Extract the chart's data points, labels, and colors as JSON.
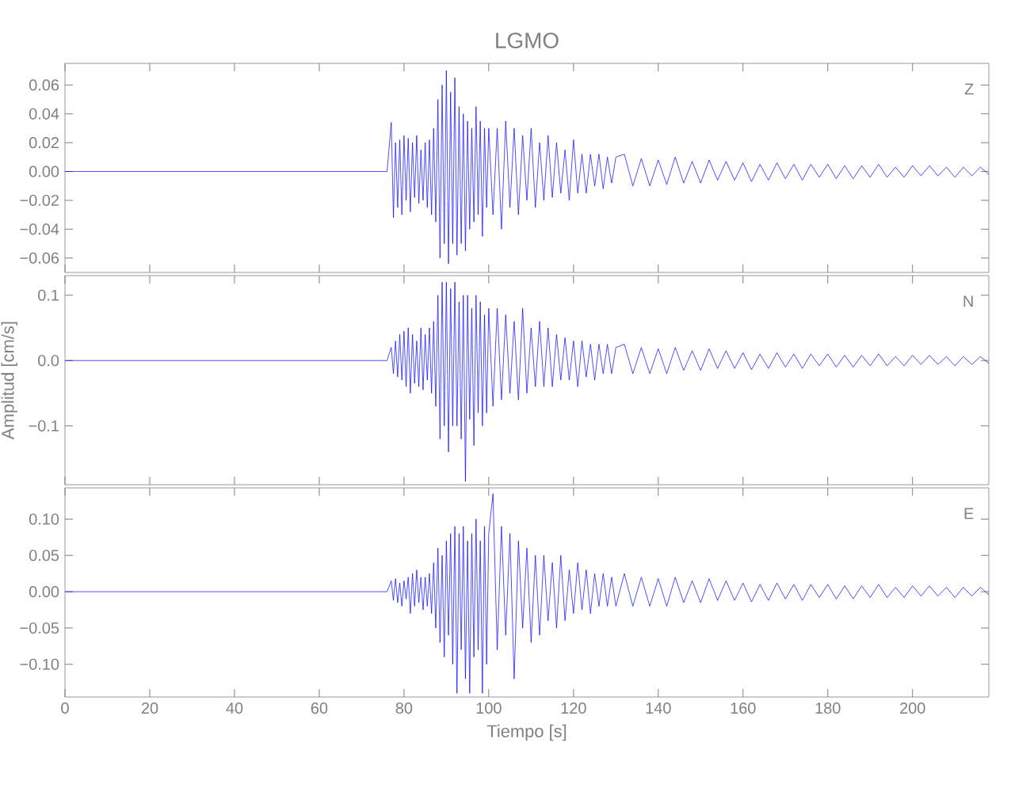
{
  "chart_data": [
    {
      "type": "line",
      "title": "LGMO",
      "annotations": [
        "Z"
      ],
      "tick_labels": "y",
      "color": "#0000ff",
      "xlim": [
        0,
        218
      ],
      "xticks": [
        0,
        20,
        40,
        60,
        80,
        100,
        120,
        140,
        160,
        180,
        200
      ],
      "ylim": [
        -0.07,
        0.075
      ],
      "yticks": [
        {
          "value": -0.06,
          "label": "−0.06"
        },
        {
          "value": -0.04,
          "label": "−0.04"
        },
        {
          "value": -0.02,
          "label": "−0.02"
        },
        {
          "value": 0,
          "label": "0.00"
        },
        {
          "value": 0.02,
          "label": "0.02"
        },
        {
          "value": 0.04,
          "label": "0.04"
        },
        {
          "value": 0.06,
          "label": "0.06"
        }
      ],
      "x": [
        0,
        20,
        40,
        60,
        76,
        77,
        77.5,
        78,
        78.5,
        79,
        79.5,
        80,
        80.5,
        81,
        81.5,
        82,
        82.5,
        83,
        83.5,
        84,
        84.5,
        85,
        85.5,
        86,
        86.5,
        87,
        87.5,
        88,
        88.5,
        89,
        89.5,
        90,
        90.5,
        91,
        91.5,
        92,
        92.5,
        93,
        93.5,
        94,
        94.5,
        95,
        95.5,
        96,
        96.5,
        97,
        97.5,
        98,
        98.5,
        99,
        99.5,
        100,
        101,
        102,
        103,
        104,
        105,
        106,
        107,
        108,
        109,
        110,
        111,
        112,
        113,
        114,
        115,
        116,
        117,
        118,
        119,
        120,
        121,
        122,
        123,
        124,
        125,
        126,
        127,
        128,
        129,
        130,
        132,
        134,
        136,
        138,
        140,
        142,
        144,
        146,
        148,
        150,
        152,
        154,
        156,
        158,
        160,
        162,
        164,
        166,
        168,
        170,
        172,
        174,
        176,
        178,
        180,
        182,
        184,
        186,
        188,
        190,
        192,
        194,
        196,
        198,
        200,
        202,
        204,
        206,
        208,
        210,
        212,
        214,
        216,
        218
      ],
      "values": [
        0,
        0,
        0,
        0,
        0,
        0.034,
        -0.032,
        0.02,
        -0.025,
        0.022,
        -0.03,
        0.025,
        -0.02,
        0.023,
        -0.028,
        0.02,
        -0.018,
        0.025,
        -0.022,
        0.015,
        -0.02,
        0.02,
        -0.025,
        0.022,
        -0.03,
        0.03,
        -0.035,
        0.05,
        -0.06,
        0.06,
        -0.05,
        0.07,
        -0.064,
        0.055,
        -0.05,
        0.065,
        -0.058,
        0.045,
        -0.05,
        0.04,
        -0.055,
        0.035,
        -0.04,
        0.03,
        -0.035,
        0.045,
        -0.03,
        0.035,
        -0.045,
        0.03,
        -0.025,
        0.03,
        -0.03,
        0.03,
        -0.04,
        0.035,
        -0.025,
        0.03,
        -0.03,
        0.025,
        -0.02,
        0.03,
        -0.025,
        0.02,
        -0.02,
        0.025,
        -0.018,
        0.02,
        -0.015,
        0.015,
        -0.02,
        0.022,
        -0.015,
        0.012,
        -0.015,
        0.012,
        -0.01,
        0.012,
        -0.012,
        0.01,
        -0.008,
        0.01,
        0.012,
        -0.01,
        0.009,
        -0.01,
        0.008,
        -0.009,
        0.01,
        -0.008,
        0.007,
        -0.008,
        0.008,
        -0.006,
        0.007,
        -0.006,
        0.006,
        -0.007,
        0.005,
        -0.006,
        0.006,
        -0.005,
        0.005,
        -0.006,
        0.005,
        -0.004,
        0.005,
        -0.005,
        0.004,
        -0.005,
        0.004,
        -0.004,
        0.005,
        -0.004,
        0.003,
        -0.004,
        0.004,
        -0.003,
        0.004,
        -0.003,
        0.003,
        -0.004,
        0.003,
        -0.003,
        0.003,
        -0.002
      ]
    },
    {
      "type": "line",
      "ylabel": "Amplitud [cm/s]",
      "annotations": [
        "N"
      ],
      "tick_labels": "y",
      "color": "#0000ff",
      "xlim": [
        0,
        218
      ],
      "xticks": [
        0,
        20,
        40,
        60,
        80,
        100,
        120,
        140,
        160,
        180,
        200
      ],
      "ylim": [
        -0.19,
        0.13
      ],
      "yticks": [
        {
          "value": -0.1,
          "label": "−0.1"
        },
        {
          "value": 0,
          "label": "0.0"
        },
        {
          "value": 0.1,
          "label": "0.1"
        }
      ],
      "x": [
        0,
        20,
        40,
        60,
        76,
        77,
        77.5,
        78,
        78.5,
        79,
        79.5,
        80,
        80.5,
        81,
        81.5,
        82,
        82.5,
        83,
        83.5,
        84,
        84.5,
        85,
        85.5,
        86,
        86.5,
        87,
        87.5,
        88,
        88.5,
        89,
        89.5,
        90,
        90.5,
        91,
        91.5,
        92,
        92.5,
        93,
        93.5,
        94,
        94.5,
        95,
        95.5,
        96,
        96.5,
        97,
        97.5,
        98,
        98.5,
        99,
        99.5,
        100,
        101,
        102,
        103,
        104,
        105,
        106,
        107,
        108,
        109,
        110,
        111,
        112,
        113,
        114,
        115,
        116,
        117,
        118,
        119,
        120,
        121,
        122,
        123,
        124,
        125,
        126,
        127,
        128,
        129,
        130,
        132,
        134,
        136,
        138,
        140,
        142,
        144,
        146,
        148,
        150,
        152,
        154,
        156,
        158,
        160,
        162,
        164,
        166,
        168,
        170,
        172,
        174,
        176,
        178,
        180,
        182,
        184,
        186,
        188,
        190,
        192,
        194,
        196,
        198,
        200,
        202,
        204,
        206,
        208,
        210,
        212,
        214,
        216,
        218
      ],
      "values": [
        0,
        0,
        0,
        0,
        0,
        0.02,
        -0.02,
        0.03,
        -0.025,
        0.04,
        -0.03,
        0.045,
        -0.04,
        0.05,
        -0.05,
        0.04,
        -0.035,
        0.03,
        -0.04,
        0.05,
        -0.045,
        0.04,
        -0.03,
        0.05,
        -0.05,
        0.06,
        -0.07,
        0.1,
        -0.12,
        0.12,
        -0.1,
        0.12,
        -0.14,
        0.11,
        -0.1,
        0.12,
        -0.1,
        0.09,
        -0.12,
        0.1,
        -0.185,
        0.1,
        -0.09,
        0.08,
        -0.13,
        0.1,
        -0.08,
        0.09,
        -0.1,
        0.07,
        -0.08,
        0.08,
        -0.07,
        0.08,
        -0.06,
        0.07,
        -0.05,
        0.06,
        -0.06,
        0.08,
        -0.05,
        0.05,
        -0.04,
        0.06,
        -0.04,
        0.05,
        -0.04,
        0.04,
        -0.03,
        0.035,
        -0.03,
        0.03,
        -0.04,
        0.03,
        -0.025,
        0.025,
        -0.03,
        0.025,
        -0.02,
        0.025,
        -0.02,
        0.02,
        0.025,
        -0.02,
        0.02,
        -0.02,
        0.018,
        -0.02,
        0.02,
        -0.015,
        0.015,
        -0.015,
        0.018,
        -0.012,
        0.015,
        -0.012,
        0.012,
        -0.014,
        0.01,
        -0.012,
        0.012,
        -0.01,
        0.01,
        -0.012,
        0.01,
        -0.008,
        0.01,
        -0.01,
        0.008,
        -0.01,
        0.008,
        -0.008,
        0.01,
        -0.008,
        0.006,
        -0.008,
        0.008,
        -0.006,
        0.008,
        -0.006,
        0.006,
        -0.008,
        0.006,
        -0.006,
        0.006,
        -0.004
      ]
    },
    {
      "type": "line",
      "xlabel": "Tiempo [s]",
      "annotations": [
        "E"
      ],
      "color": "#0000ff",
      "xlim": [
        0,
        218
      ],
      "xticks": [
        0,
        20,
        40,
        60,
        80,
        100,
        120,
        140,
        160,
        180,
        200
      ],
      "ylim": [
        -0.145,
        0.143
      ],
      "yticks": [
        {
          "value": -0.1,
          "label": "−0.10"
        },
        {
          "value": -0.05,
          "label": "−0.05"
        },
        {
          "value": 0,
          "label": "0.00"
        },
        {
          "value": 0.05,
          "label": "0.05"
        },
        {
          "value": 0.1,
          "label": "0.10"
        }
      ],
      "x": [
        0,
        20,
        40,
        60,
        76,
        77,
        77.5,
        78,
        78.5,
        79,
        79.5,
        80,
        80.5,
        81,
        81.5,
        82,
        82.5,
        83,
        83.5,
        84,
        84.5,
        85,
        85.5,
        86,
        86.5,
        87,
        87.5,
        88,
        88.5,
        89,
        89.5,
        90,
        90.5,
        91,
        91.5,
        92,
        92.5,
        93,
        93.5,
        94,
        94.5,
        95,
        95.5,
        96,
        96.5,
        97,
        97.5,
        98,
        98.5,
        99,
        99.5,
        100,
        101,
        102,
        103,
        104,
        105,
        106,
        107,
        108,
        109,
        110,
        111,
        112,
        113,
        114,
        115,
        116,
        117,
        118,
        119,
        120,
        121,
        122,
        123,
        124,
        125,
        126,
        127,
        128,
        129,
        130,
        132,
        134,
        136,
        138,
        140,
        142,
        144,
        146,
        148,
        150,
        152,
        154,
        156,
        158,
        160,
        162,
        164,
        166,
        168,
        170,
        172,
        174,
        176,
        178,
        180,
        182,
        184,
        186,
        188,
        190,
        192,
        194,
        196,
        198,
        200,
        202,
        204,
        206,
        208,
        210,
        212,
        214,
        216,
        218
      ],
      "values": [
        0,
        0,
        0,
        0,
        0,
        0.015,
        -0.012,
        0.018,
        -0.015,
        0.012,
        -0.02,
        0.015,
        -0.01,
        0.02,
        -0.03,
        0.025,
        -0.02,
        0.03,
        -0.015,
        0.02,
        -0.025,
        0.02,
        -0.02,
        0.025,
        -0.03,
        0.04,
        -0.05,
        0.06,
        -0.07,
        0.05,
        -0.09,
        0.07,
        -0.06,
        0.08,
        -0.1,
        0.09,
        -0.14,
        0.08,
        -0.08,
        0.09,
        -0.12,
        0.07,
        -0.14,
        0.08,
        -0.09,
        0.1,
        -0.08,
        0.07,
        -0.14,
        0.09,
        -0.1,
        0.08,
        0.135,
        -0.08,
        0.09,
        -0.06,
        0.08,
        -0.12,
        0.07,
        -0.05,
        0.06,
        -0.07,
        0.05,
        -0.06,
        0.05,
        -0.04,
        0.04,
        -0.05,
        0.05,
        -0.04,
        0.03,
        -0.03,
        0.04,
        -0.025,
        0.03,
        -0.03,
        0.025,
        -0.02,
        0.025,
        -0.02,
        0.02,
        -0.02,
        0.025,
        -0.02,
        0.02,
        -0.02,
        0.018,
        -0.02,
        0.02,
        -0.015,
        0.015,
        -0.015,
        0.018,
        -0.012,
        0.015,
        -0.012,
        0.012,
        -0.014,
        0.01,
        -0.012,
        0.012,
        -0.01,
        0.01,
        -0.012,
        0.01,
        -0.008,
        0.01,
        -0.01,
        0.008,
        -0.01,
        0.008,
        -0.008,
        0.01,
        -0.008,
        0.006,
        -0.008,
        0.008,
        -0.006,
        0.008,
        -0.006,
        0.006,
        -0.008,
        0.006,
        -0.006,
        0.006,
        -0.004
      ]
    }
  ]
}
